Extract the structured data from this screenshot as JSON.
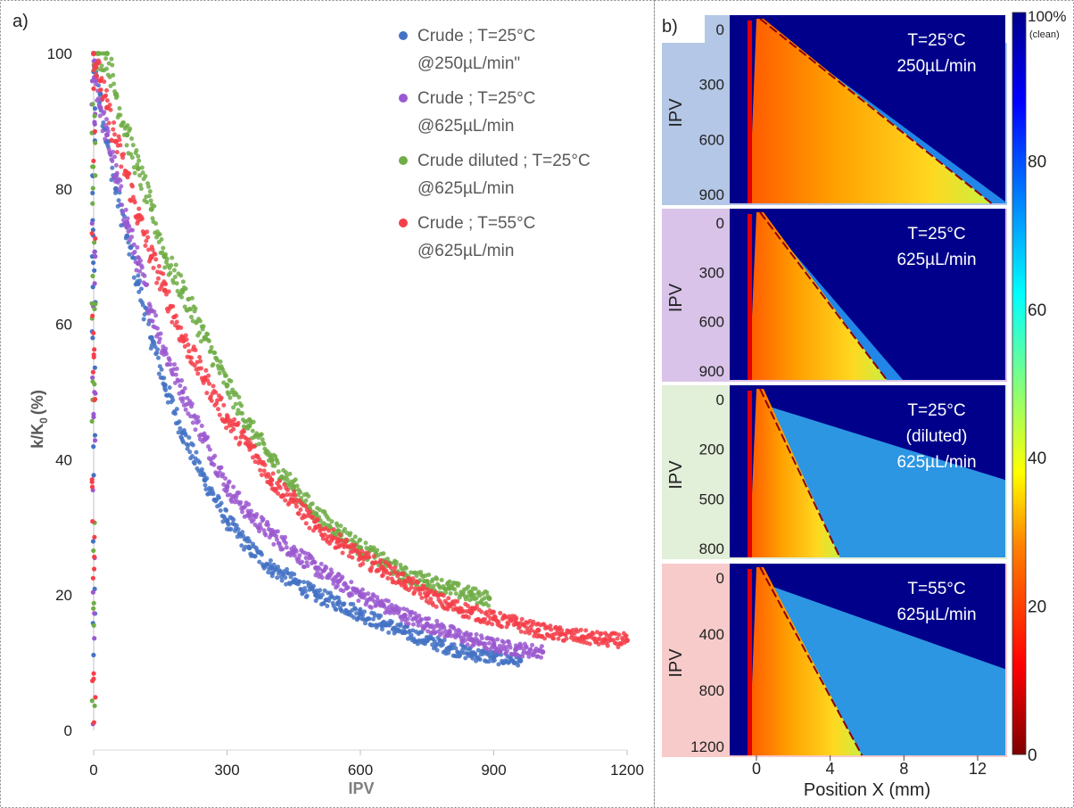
{
  "panel_a_label": "a)",
  "panel_b_label": "b)",
  "chart_data": [
    {
      "type": "scatter",
      "panel": "a)",
      "xlabel": "IPV",
      "ylabel": "k/K",
      "ylabel_sub": "0",
      "ylabel_unit": "(%)",
      "xlim": [
        0,
        1200
      ],
      "ylim": [
        0,
        100
      ],
      "xticks": [
        0,
        300,
        600,
        900,
        1200
      ],
      "yticks": [
        0,
        20,
        40,
        60,
        80,
        100
      ],
      "grid": false,
      "legend_position": "top-right",
      "series": [
        {
          "legend": [
            "Crude ; T=25°C",
            "@250µL/min\""
          ],
          "color": "#4472c4",
          "x": [
            0,
            5,
            15,
            30,
            50,
            75,
            100,
            130,
            160,
            200,
            250,
            300,
            350,
            400,
            450,
            500,
            550,
            600,
            650,
            700,
            750,
            800,
            850,
            900,
            960
          ],
          "y": [
            100,
            98,
            94,
            87,
            80,
            73,
            66,
            58,
            51,
            44,
            37,
            31,
            27,
            24,
            22,
            20,
            18.8,
            17.2,
            15.8,
            14.5,
            13.3,
            12.2,
            11.3,
            10.8,
            10.3
          ]
        },
        {
          "legend": [
            "Crude ; T=25°C",
            "@625µL/min"
          ],
          "color": "#9b59d0",
          "x": [
            0,
            5,
            15,
            30,
            50,
            75,
            100,
            130,
            160,
            200,
            250,
            300,
            350,
            400,
            450,
            500,
            550,
            600,
            650,
            700,
            750,
            800,
            850,
            900,
            950,
            1010
          ],
          "y": [
            100,
            96,
            92,
            88,
            82,
            75,
            69,
            62,
            56,
            50,
            43,
            36,
            32,
            29,
            26.5,
            24,
            22,
            20,
            18.5,
            17,
            15.7,
            14.5,
            13.4,
            12.6,
            12,
            11.6
          ]
        },
        {
          "legend": [
            "Crude diluted ; T=25°C",
            "@625µL/min"
          ],
          "color": "#70ad47",
          "x": [
            0,
            10,
            30,
            50,
            75,
            100,
            130,
            160,
            200,
            250,
            300,
            350,
            400,
            450,
            500,
            550,
            600,
            650,
            700,
            750,
            800,
            850,
            890
          ],
          "y": [
            100,
            100,
            100,
            94,
            88,
            83,
            77,
            70,
            65,
            58,
            51,
            45,
            40,
            36,
            32,
            29.5,
            27,
            25,
            23,
            22,
            21,
            20,
            19.5
          ]
        },
        {
          "legend": [
            "Crude ; T=55°C",
            "@625µL/min"
          ],
          "color": "#f5404a",
          "x": [
            0,
            5,
            15,
            30,
            50,
            75,
            100,
            130,
            160,
            200,
            250,
            300,
            350,
            400,
            450,
            500,
            550,
            600,
            650,
            700,
            750,
            800,
            850,
            900,
            950,
            1000,
            1050,
            1100,
            1150,
            1200
          ],
          "y": [
            100,
            98,
            96,
            92,
            87,
            82,
            76,
            70,
            65,
            58,
            52,
            46,
            42,
            37,
            34,
            30,
            28,
            25.5,
            24,
            22,
            20,
            18.5,
            17.5,
            16.5,
            15.8,
            14.8,
            14.2,
            13.8,
            13.4,
            13.3
          ]
        }
      ]
    },
    {
      "type": "heatmap",
      "panel": "b)",
      "xlabel": "Position X (mm)",
      "xticks": [
        "0",
        "4",
        "8",
        "12"
      ],
      "ylabel": "IPV",
      "colorbar": {
        "top_label": "100%",
        "top_sublabel": "(clean)",
        "ticks": [
          "80",
          "60",
          "40",
          "20",
          "0"
        ]
      },
      "subplots": [
        {
          "title_lines": [
            "T=25°C",
            "250µL/min"
          ],
          "yticks": [
            "0",
            "300",
            "600",
            "900"
          ],
          "band_color": "#b4c7e7"
        },
        {
          "title_lines": [
            "T=25°C",
            "625µL/min"
          ],
          "yticks": [
            "0",
            "300",
            "600",
            "900"
          ],
          "band_color": "#d9c3e9"
        },
        {
          "title_lines": [
            "T=25°C",
            "(diluted)",
            "625µL/min"
          ],
          "yticks": [
            "0",
            "200",
            "500",
            "800"
          ],
          "band_color": "#e2efd9"
        },
        {
          "title_lines": [
            "T=55°C",
            "625µL/min"
          ],
          "yticks": [
            "0",
            "400",
            "800",
            "1200"
          ],
          "band_color": "#f8cbcb"
        }
      ]
    }
  ]
}
